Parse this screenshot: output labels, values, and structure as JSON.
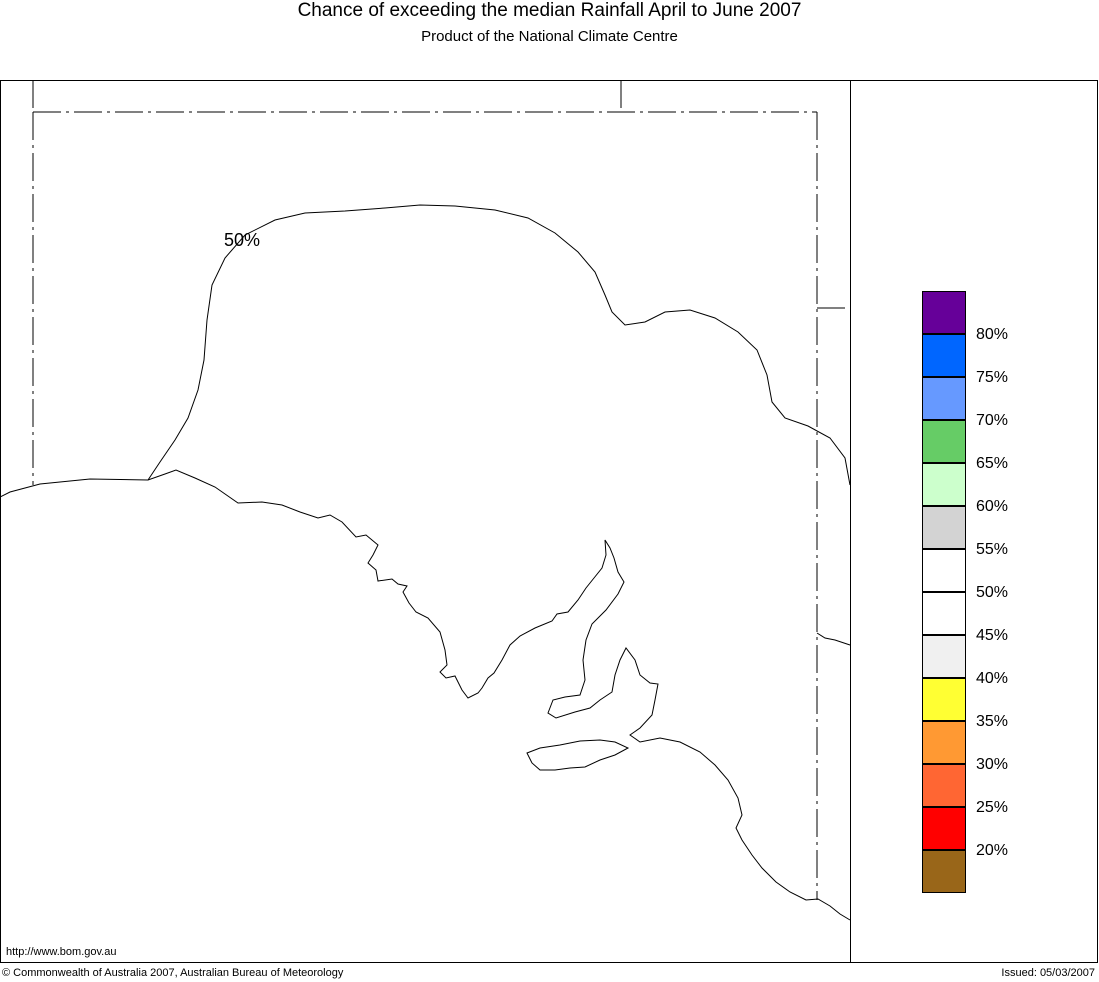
{
  "header": {
    "title": "Chance of exceeding the median Rainfall April to June 2007",
    "subtitle": "Product of the National Climate Centre"
  },
  "map": {
    "contour_label": "50%"
  },
  "legend": {
    "swatches": [
      {
        "color": "#660099"
      },
      {
        "color": "#0066ff"
      },
      {
        "color": "#6699ff"
      },
      {
        "color": "#66cc66"
      },
      {
        "color": "#ccffcc"
      },
      {
        "color": "#d3d3d3"
      },
      {
        "color": "#ffffff"
      },
      {
        "color": "#ffffff"
      },
      {
        "color": "#f0f0f0"
      },
      {
        "color": "#ffff33"
      },
      {
        "color": "#ff9933"
      },
      {
        "color": "#ff6633"
      },
      {
        "color": "#ff0000"
      },
      {
        "color": "#996619"
      }
    ],
    "labels": [
      "80%",
      "75%",
      "70%",
      "65%",
      "60%",
      "55%",
      "50%",
      "45%",
      "40%",
      "35%",
      "30%",
      "25%",
      "20%"
    ]
  },
  "footer": {
    "url": "http://www.bom.gov.au",
    "copyright": "© Commonwealth of Australia 2007, Australian Bureau of Meteorology",
    "issued": "Issued: 05/03/2007"
  }
}
